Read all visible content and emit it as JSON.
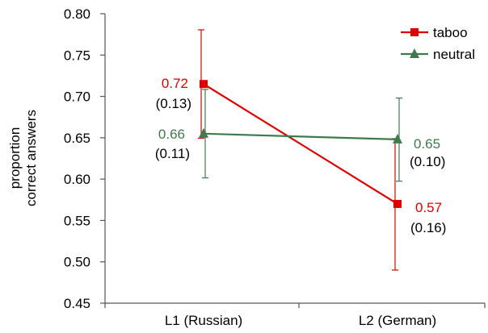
{
  "chart_data": {
    "type": "line",
    "categories": [
      "L1 (Russian)",
      "L2 (German)"
    ],
    "ylabel": [
      "proportion",
      "correct answers"
    ],
    "ylim": [
      0.45,
      0.8
    ],
    "yticks": [
      "0.45",
      "0.50",
      "0.55",
      "0.60",
      "0.65",
      "0.70",
      "0.75",
      "0.80"
    ],
    "grid": false,
    "legend_position": "top-right",
    "series": [
      {
        "name": "taboo",
        "color": "#e00000",
        "marker": "square",
        "values": [
          0.715,
          0.57
        ],
        "error_low": [
          0.6495,
          0.49
        ],
        "error_high": [
          0.7805,
          0.649
        ],
        "labels": [
          "0.72",
          "0.57"
        ],
        "sd_labels": [
          "(0.13)",
          "(0.16)"
        ]
      },
      {
        "name": "neutral",
        "color": "#3f7a4f",
        "marker": "triangle",
        "values": [
          0.655,
          0.648
        ],
        "error_low": [
          0.6015,
          0.5975
        ],
        "error_high": [
          0.7085,
          0.698
        ],
        "labels": [
          "0.66",
          "0.65"
        ],
        "sd_labels": [
          "(0.11)",
          "(0.10)"
        ]
      }
    ]
  }
}
